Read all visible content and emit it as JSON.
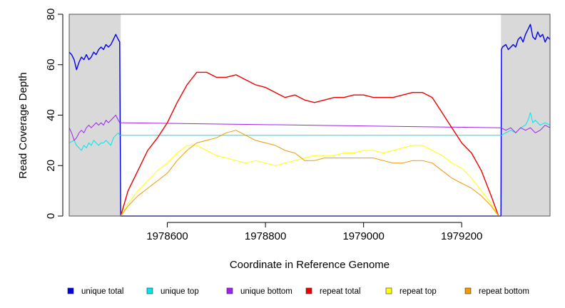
{
  "chart_data": {
    "type": "line",
    "title": "",
    "xlabel": "Coordinate in Reference Genome",
    "ylabel": "Read Coverage Depth",
    "xlim": [
      1978400,
      1979380
    ],
    "ylim": [
      0,
      80
    ],
    "xticks": [
      1978600,
      1978800,
      1979000,
      1979200
    ],
    "xtick_labels": [
      "1978600",
      "1978800",
      "1979000",
      "1979200"
    ],
    "yticks": [
      0,
      20,
      40,
      60,
      80
    ],
    "ytick_labels": [
      "0",
      "20",
      "40",
      "60",
      "80"
    ],
    "grid": false,
    "legend_position": "bottom",
    "shaded_regions": [
      {
        "x": [
          1978400,
          1978505
        ],
        "color": "#d9d9d9"
      },
      {
        "x": [
          1979280,
          1979380
        ],
        "color": "#d9d9d9"
      }
    ],
    "series": [
      {
        "name": "unique total",
        "color": "#0000ee",
        "x": [
          1978400,
          1978405,
          1978410,
          1978415,
          1978420,
          1978425,
          1978430,
          1978435,
          1978440,
          1978445,
          1978450,
          1978455,
          1978460,
          1978465,
          1978470,
          1978475,
          1978480,
          1978485,
          1978490,
          1978495,
          1978500,
          1978503,
          1978504,
          1978505,
          1979280,
          1979281,
          1979283,
          1979290,
          1979295,
          1979300,
          1979305,
          1979310,
          1979315,
          1979320,
          1979325,
          1979330,
          1979335,
          1979340,
          1979345,
          1979350,
          1979355,
          1979360,
          1979365,
          1979370,
          1979375,
          1979380
        ],
        "values": [
          65,
          64,
          62,
          58,
          61,
          63,
          62,
          64,
          62,
          63,
          65,
          64,
          66,
          67,
          66,
          68,
          67,
          68,
          70,
          72,
          70,
          69,
          35,
          0,
          0,
          66,
          67,
          68,
          66,
          67,
          68,
          67,
          70,
          71,
          69,
          72,
          74,
          76,
          71,
          70,
          73,
          71,
          72,
          69,
          71,
          70
        ]
      },
      {
        "name": "unique top",
        "color": "#00e5ee",
        "x": [
          1978400,
          1978410,
          1978415,
          1978420,
          1978425,
          1978430,
          1978435,
          1978440,
          1978445,
          1978450,
          1978455,
          1978460,
          1978465,
          1978470,
          1978475,
          1978480,
          1978485,
          1978490,
          1978495,
          1978500,
          1978503,
          1979280,
          1979290,
          1979300,
          1979310,
          1979320,
          1979330,
          1979335,
          1979340,
          1979345,
          1979350,
          1979360,
          1979370,
          1979380
        ],
        "values": [
          29,
          30,
          28,
          27,
          26,
          28,
          27,
          29,
          28,
          30,
          29,
          28,
          29,
          29,
          30,
          29,
          28,
          31,
          32,
          33,
          32,
          32,
          33,
          34,
          33,
          35,
          36,
          38,
          41,
          37,
          38,
          36,
          37,
          36
        ]
      },
      {
        "name": "unique bottom",
        "color": "#a020f0",
        "x": [
          1978400,
          1978405,
          1978410,
          1978415,
          1978420,
          1978425,
          1978430,
          1978435,
          1978440,
          1978445,
          1978450,
          1978455,
          1978460,
          1978465,
          1978470,
          1978475,
          1978480,
          1978485,
          1978490,
          1978495,
          1978500,
          1978503,
          1979280,
          1979290,
          1979300,
          1979310,
          1979320,
          1979330,
          1979340,
          1979350,
          1979360,
          1979370,
          1979380
        ],
        "values": [
          35,
          33,
          30,
          31,
          33,
          34,
          33,
          35,
          36,
          35,
          36,
          37,
          36,
          37,
          36,
          38,
          37,
          38,
          39,
          40,
          38,
          37,
          35,
          34,
          35,
          33,
          35,
          34,
          35,
          33,
          34,
          36,
          35
        ]
      },
      {
        "name": "repeat total",
        "color": "#ee0000",
        "x": [
          1978505,
          1978520,
          1978540,
          1978560,
          1978580,
          1978600,
          1978620,
          1978640,
          1978660,
          1978680,
          1978700,
          1978720,
          1978740,
          1978760,
          1978780,
          1978800,
          1978820,
          1978840,
          1978860,
          1978880,
          1978900,
          1978920,
          1978940,
          1978960,
          1978980,
          1979000,
          1979020,
          1979040,
          1979060,
          1979080,
          1979100,
          1979120,
          1979140,
          1979160,
          1979180,
          1979200,
          1979220,
          1979240,
          1979260,
          1979275
        ],
        "values": [
          0,
          10,
          18,
          26,
          31,
          37,
          45,
          52,
          57,
          57,
          55,
          55,
          56,
          54,
          52,
          51,
          49,
          47,
          48,
          46,
          45,
          46,
          47,
          47,
          48,
          48,
          47,
          47,
          47,
          48,
          49,
          49,
          47,
          41,
          35,
          29,
          25,
          18,
          8,
          0
        ]
      },
      {
        "name": "repeat top",
        "color": "#ffff00",
        "x": [
          1978505,
          1978520,
          1978540,
          1978560,
          1978580,
          1978600,
          1978620,
          1978640,
          1978660,
          1978680,
          1978700,
          1978720,
          1978740,
          1978760,
          1978780,
          1978800,
          1978820,
          1978840,
          1978860,
          1978880,
          1978900,
          1978920,
          1978940,
          1978960,
          1978980,
          1979000,
          1979020,
          1979040,
          1979060,
          1979080,
          1979100,
          1979120,
          1979140,
          1979160,
          1979180,
          1979200,
          1979220,
          1979240,
          1979260,
          1979275
        ],
        "values": [
          0,
          5,
          10,
          14,
          18,
          21,
          25,
          28,
          28,
          26,
          24,
          23,
          22,
          21,
          22,
          21,
          20,
          21,
          22,
          23,
          24,
          24,
          24,
          25,
          25,
          26,
          26,
          25,
          26,
          27,
          28,
          28,
          26,
          24,
          21,
          19,
          15,
          10,
          5,
          0
        ]
      },
      {
        "name": "repeat bottom",
        "color": "#ee9a00",
        "x": [
          1978505,
          1978520,
          1978540,
          1978560,
          1978580,
          1978600,
          1978620,
          1978640,
          1978660,
          1978680,
          1978700,
          1978720,
          1978740,
          1978760,
          1978780,
          1978800,
          1978820,
          1978840,
          1978860,
          1978880,
          1978900,
          1978920,
          1978940,
          1978960,
          1978980,
          1979000,
          1979020,
          1979040,
          1979060,
          1979080,
          1979100,
          1979120,
          1979140,
          1979160,
          1979180,
          1979200,
          1979220,
          1979240,
          1979260,
          1979275
        ],
        "values": [
          0,
          4,
          8,
          11,
          14,
          17,
          22,
          26,
          29,
          30,
          31,
          33,
          34,
          32,
          30,
          29,
          28,
          26,
          25,
          22,
          22,
          23,
          23,
          23,
          23,
          23,
          23,
          22,
          21,
          21,
          22,
          22,
          21,
          18,
          15,
          13,
          11,
          8,
          4,
          0
        ]
      }
    ]
  }
}
